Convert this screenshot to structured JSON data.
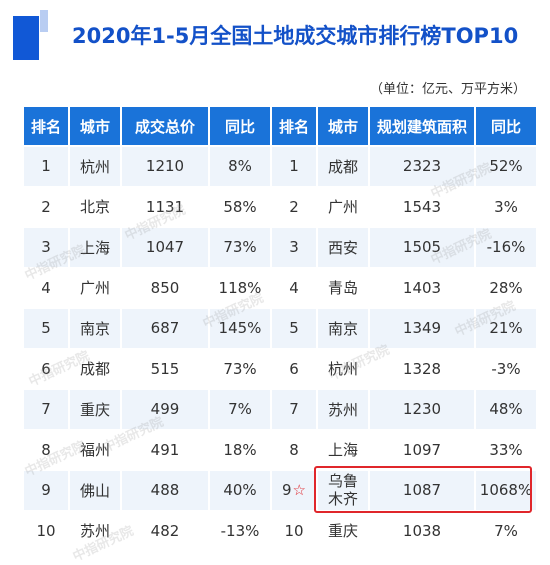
{
  "title": "2020年1-5月全国土地成交城市排行榜TOP10",
  "unit_note": "（单位：亿元、万平方米）",
  "headers": [
    "排名",
    "城市",
    "成交总价",
    "同比",
    "排名",
    "城市",
    "规划建筑面积",
    "同比"
  ],
  "rows": [
    {
      "rank_a": "1",
      "city_a": "杭州",
      "total": "1210",
      "yoy_a": "8%",
      "rank_b": "1",
      "city_b": "成都",
      "area": "2323",
      "yoy_b": "52%"
    },
    {
      "rank_a": "2",
      "city_a": "北京",
      "total": "1131",
      "yoy_a": "58%",
      "rank_b": "2",
      "city_b": "广州",
      "area": "1543",
      "yoy_b": "3%"
    },
    {
      "rank_a": "3",
      "city_a": "上海",
      "total": "1047",
      "yoy_a": "73%",
      "rank_b": "3",
      "city_b": "西安",
      "area": "1505",
      "yoy_b": "-16%"
    },
    {
      "rank_a": "4",
      "city_a": "广州",
      "total": "850",
      "yoy_a": "118%",
      "rank_b": "4",
      "city_b": "青岛",
      "area": "1403",
      "yoy_b": "28%"
    },
    {
      "rank_a": "5",
      "city_a": "南京",
      "total": "687",
      "yoy_a": "145%",
      "rank_b": "5",
      "city_b": "南京",
      "area": "1349",
      "yoy_b": "21%"
    },
    {
      "rank_a": "6",
      "city_a": "成都",
      "total": "515",
      "yoy_a": "73%",
      "rank_b": "6",
      "city_b": "杭州",
      "area": "1328",
      "yoy_b": "-3%"
    },
    {
      "rank_a": "7",
      "city_a": "重庆",
      "total": "499",
      "yoy_a": "7%",
      "rank_b": "7",
      "city_b": "苏州",
      "area": "1230",
      "yoy_b": "48%"
    },
    {
      "rank_a": "8",
      "city_a": "福州",
      "total": "491",
      "yoy_a": "18%",
      "rank_b": "8",
      "city_b": "上海",
      "area": "1097",
      "yoy_b": "33%"
    },
    {
      "rank_a": "9",
      "city_a": "佛山",
      "total": "488",
      "yoy_a": "40%",
      "rank_b": "9",
      "city_b_line1": "乌鲁",
      "city_b_line2": "木齐",
      "area": "1087",
      "yoy_b": "1068%",
      "star": "☆"
    },
    {
      "rank_a": "10",
      "city_a": "苏州",
      "total": "482",
      "yoy_a": "-13%",
      "rank_b": "10",
      "city_b": "重庆",
      "area": "1038",
      "yoy_b": "7%"
    }
  ],
  "watermark": "中指研究院",
  "colors": {
    "title": "#1351c8",
    "header_bg": "#1a73d9",
    "row_alt": "#eef4fb",
    "highlight": "#e0262b"
  }
}
